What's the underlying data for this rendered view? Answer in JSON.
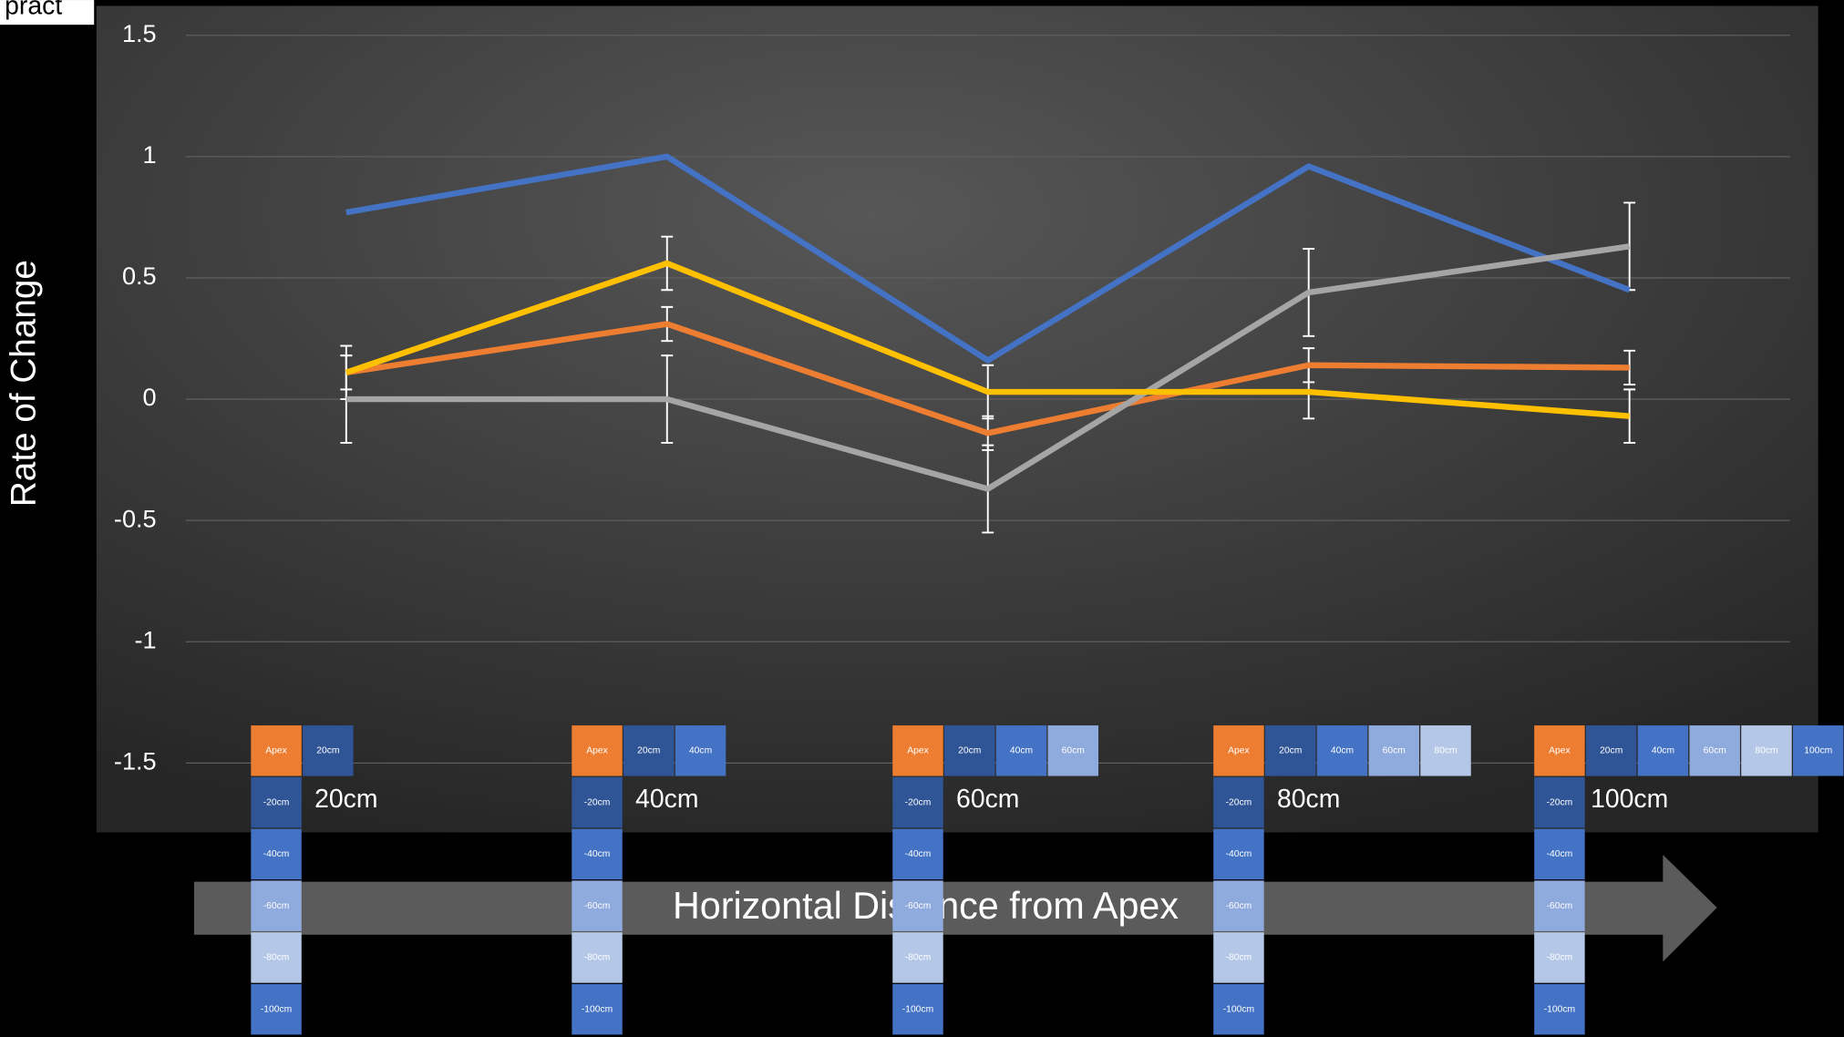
{
  "corner_text": "pract",
  "chart_data": {
    "type": "line",
    "y_label": "Rate of Change",
    "x_label": "Horizontal Distance from Apex",
    "categories": [
      "20cm",
      "40cm",
      "60cm",
      "80cm",
      "100cm"
    ],
    "series": [
      {
        "color": "#4472c4",
        "values": [
          0.77,
          1.0,
          0.16,
          0.96,
          0.45
        ]
      },
      {
        "color": "#ed7d31",
        "values": [
          0.11,
          0.31,
          -0.14,
          0.14,
          0.13
        ],
        "errors": [
          0.07,
          0.07,
          0.07,
          0.07,
          0.07
        ]
      },
      {
        "color": "#a5a5a5",
        "values": [
          0,
          0,
          -0.37,
          0.44,
          0.63
        ],
        "errors": [
          0.18,
          0.18,
          0.18,
          0.18,
          0.18
        ]
      },
      {
        "color": "#ffc000",
        "values": [
          0.11,
          0.56,
          0.03,
          0.03,
          -0.07
        ],
        "errors": [
          0.11,
          0.11,
          0.11,
          0.11,
          0.11
        ]
      }
    ],
    "ylim": [
      -1.5,
      1.5
    ],
    "yticks": [
      -1.5,
      -1,
      -0.5,
      0,
      0.5,
      1,
      1.5
    ],
    "grid": true
  },
  "diagrams": [
    {
      "row": [
        "Apex",
        "20cm"
      ],
      "column": [
        "-20cm",
        "-40cm",
        "-60cm",
        "-80cm",
        "-100cm"
      ]
    },
    {
      "row": [
        "Apex",
        "20cm",
        "40cm"
      ],
      "column": [
        "-20cm",
        "-40cm",
        "-60cm",
        "-80cm",
        "-100cm"
      ]
    },
    {
      "row": [
        "Apex",
        "20cm",
        "40cm",
        "60cm"
      ],
      "column": [
        "-20cm",
        "-40cm",
        "-60cm",
        "-80cm",
        "-100cm"
      ]
    },
    {
      "row": [
        "Apex",
        "20cm",
        "40cm",
        "60cm",
        "80cm"
      ],
      "column": [
        "-20cm",
        "-40cm",
        "-60cm",
        "-80cm",
        "-100cm"
      ]
    },
    {
      "row": [
        "Apex",
        "20cm",
        "40cm",
        "60cm",
        "80cm",
        "100cm"
      ],
      "column": [
        "-20cm",
        "-40cm",
        "-60cm",
        "-80cm",
        "-100cm"
      ]
    }
  ]
}
